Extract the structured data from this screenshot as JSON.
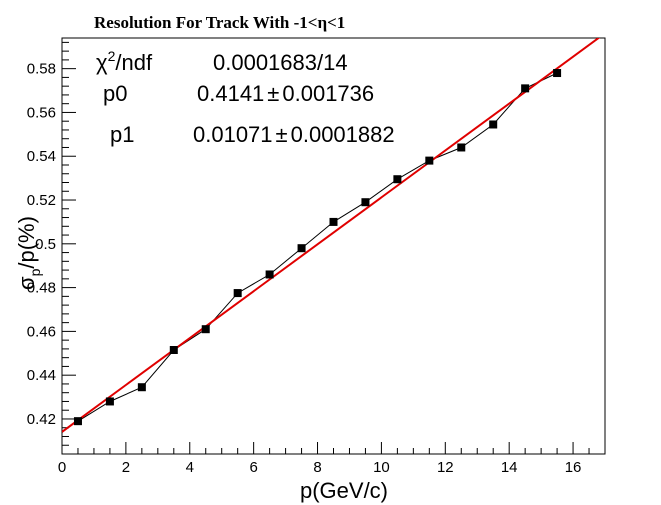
{
  "chart_data": {
    "type": "scatter",
    "title": "Resolution For Track With  -1<η<1",
    "xlabel": "p(GeV/c)",
    "ylabel_main": "σ",
    "ylabel_sub": "p",
    "ylabel_rest": "/p(%)",
    "xlim": [
      0,
      17
    ],
    "ylim": [
      0.404,
      0.594
    ],
    "x_ticks": [
      0,
      2,
      4,
      6,
      8,
      10,
      12,
      14,
      16
    ],
    "x_tick_labels": [
      "0",
      "2",
      "4",
      "6",
      "8",
      "10",
      "12",
      "14",
      "16"
    ],
    "y_ticks": [
      0.42,
      0.44,
      0.46,
      0.48,
      0.5,
      0.52,
      0.54,
      0.56,
      0.58
    ],
    "y_tick_labels": [
      "0.42",
      "0.44",
      "0.46",
      "0.48",
      "0.5",
      "0.52",
      "0.54",
      "0.56",
      "0.58"
    ],
    "grid": false,
    "series": [
      {
        "x": [
          0.5,
          1.5,
          2.5,
          3.5,
          4.5,
          5.5,
          6.5,
          7.5,
          8.5,
          9.5,
          10.5,
          11.5,
          12.5,
          13.5,
          14.5,
          15.5
        ],
        "y": [
          0.419,
          0.428,
          0.4345,
          0.4515,
          0.461,
          0.4775,
          0.486,
          0.498,
          0.51,
          0.519,
          0.5295,
          0.538,
          0.544,
          0.5545,
          0.571,
          0.578
        ],
        "color": "#000000"
      }
    ],
    "fit": {
      "p0": 0.4141,
      "p1": 0.01071,
      "color": "#e00000"
    },
    "stats_box": {
      "chi2_sym": "χ",
      "chi2_sup": "2",
      "chi2_rest": "/ndf",
      "chi2_val": "0.0001683/14",
      "p0_label": "p0",
      "p0_val": "0.4141",
      "p0_err": "0.001736",
      "p1_label": "p1",
      "p1_val": "0.01071",
      "p1_err": "0.0001882",
      "pm": "±"
    }
  }
}
